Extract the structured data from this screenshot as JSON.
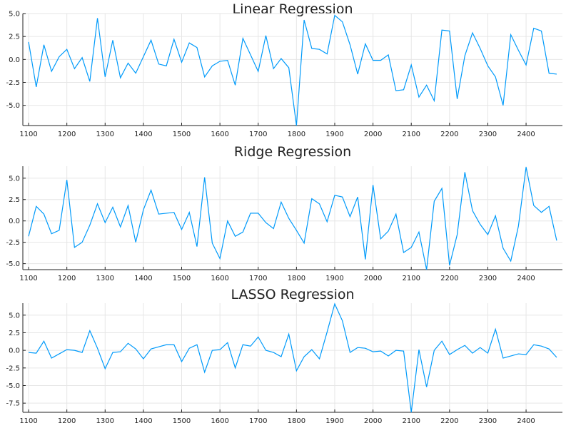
{
  "chart_data": [
    {
      "type": "line",
      "title": "Linear Regression",
      "xlim": [
        1085,
        2495
      ],
      "ylim": [
        -7.2,
        5.0
      ],
      "xticks": [
        1100,
        1200,
        1300,
        1400,
        1500,
        1600,
        1700,
        1800,
        1900,
        2000,
        2100,
        2200,
        2300,
        2400
      ],
      "yticks": [
        5.0,
        2.5,
        0.0,
        -2.5,
        -5.0
      ],
      "ytick_labels": [
        "5.0",
        "2.5",
        "0.0",
        "-2.5",
        "-5.0"
      ],
      "grid": true,
      "color": "#009AFA",
      "x": [
        1100,
        1120,
        1140,
        1160,
        1180,
        1200,
        1220,
        1240,
        1260,
        1280,
        1300,
        1320,
        1340,
        1360,
        1380,
        1400,
        1420,
        1440,
        1460,
        1480,
        1500,
        1520,
        1540,
        1560,
        1580,
        1600,
        1620,
        1640,
        1660,
        1680,
        1700,
        1720,
        1740,
        1760,
        1780,
        1800,
        1820,
        1840,
        1860,
        1880,
        1900,
        1920,
        1940,
        1960,
        1980,
        2000,
        2020,
        2040,
        2060,
        2080,
        2100,
        2120,
        2140,
        2160,
        2180,
        2200,
        2220,
        2240,
        2260,
        2280,
        2300,
        2320,
        2340,
        2360,
        2380,
        2400,
        2420,
        2440,
        2460,
        2480
      ],
      "y": [
        1.9,
        -3.0,
        1.6,
        -1.3,
        0.3,
        1.1,
        -1.0,
        0.2,
        -2.4,
        4.5,
        -1.9,
        2.1,
        -2.0,
        -0.4,
        -1.5,
        0.3,
        2.1,
        -0.5,
        -0.7,
        2.2,
        -0.3,
        1.8,
        1.3,
        -1.9,
        -0.7,
        -0.2,
        -0.1,
        -2.8,
        2.3,
        0.5,
        -1.3,
        2.6,
        -1.0,
        0.1,
        -0.9,
        -7.2,
        4.3,
        1.2,
        1.1,
        0.6,
        4.8,
        4.1,
        1.6,
        -1.6,
        1.7,
        -0.1,
        -0.1,
        0.5,
        -3.4,
        -3.3,
        -0.6,
        -4.1,
        -2.8,
        -4.5,
        3.2,
        3.1,
        -4.3,
        0.4,
        2.9,
        1.2,
        -0.7,
        -1.9,
        -5.0,
        2.7,
        1.0,
        -0.6,
        3.4,
        3.1,
        -1.5,
        -1.6
      ]
    },
    {
      "type": "line",
      "title": "Ridge Regression",
      "xlim": [
        1085,
        2495
      ],
      "ylim": [
        -5.7,
        6.4
      ],
      "xticks": [
        1100,
        1200,
        1300,
        1400,
        1500,
        1600,
        1700,
        1800,
        1900,
        2000,
        2100,
        2200,
        2300,
        2400
      ],
      "yticks": [
        5.0,
        2.5,
        0.0,
        -2.5,
        -5.0
      ],
      "ytick_labels": [
        "5.0",
        "2.5",
        "0.0",
        "-2.5",
        "-5.0"
      ],
      "grid": true,
      "color": "#009AFA",
      "x": [
        1100,
        1120,
        1140,
        1160,
        1180,
        1200,
        1220,
        1240,
        1260,
        1280,
        1300,
        1320,
        1340,
        1360,
        1380,
        1400,
        1420,
        1440,
        1460,
        1480,
        1500,
        1520,
        1540,
        1560,
        1580,
        1600,
        1620,
        1640,
        1660,
        1680,
        1700,
        1720,
        1740,
        1760,
        1780,
        1800,
        1820,
        1840,
        1860,
        1880,
        1900,
        1920,
        1940,
        1960,
        1980,
        2000,
        2020,
        2040,
        2060,
        2080,
        2100,
        2120,
        2140,
        2160,
        2180,
        2200,
        2220,
        2240,
        2260,
        2280,
        2300,
        2320,
        2340,
        2360,
        2380,
        2400,
        2420,
        2440,
        2460,
        2480
      ],
      "y": [
        -1.8,
        1.7,
        0.8,
        -1.5,
        -1.1,
        4.8,
        -3.1,
        -2.5,
        -0.5,
        2.0,
        -0.2,
        1.6,
        -0.7,
        1.8,
        -2.5,
        1.3,
        3.6,
        0.8,
        0.9,
        1.0,
        -1.0,
        1.0,
        -3.0,
        5.1,
        -2.6,
        -4.4,
        0.0,
        -1.8,
        -1.3,
        0.9,
        0.9,
        -0.2,
        -0.9,
        2.2,
        0.3,
        -1.1,
        -2.6,
        2.6,
        2.0,
        -0.1,
        3.0,
        2.8,
        0.5,
        2.8,
        -4.5,
        4.2,
        -2.1,
        -1.2,
        0.8,
        -3.7,
        -3.1,
        -1.3,
        -5.7,
        2.3,
        3.8,
        -5.2,
        -1.6,
        5.7,
        1.2,
        -0.4,
        -1.6,
        0.6,
        -3.2,
        -4.7,
        -0.6,
        6.3,
        1.8,
        1.0,
        1.7,
        -2.3
      ]
    },
    {
      "type": "line",
      "title": "LASSO Regression",
      "xlim": [
        1085,
        2495
      ],
      "ylim": [
        -8.8,
        6.7
      ],
      "xticks": [
        1100,
        1200,
        1300,
        1400,
        1500,
        1600,
        1700,
        1800,
        1900,
        2000,
        2100,
        2200,
        2300,
        2400
      ],
      "yticks": [
        5.0,
        2.5,
        0.0,
        -2.5,
        -5.0,
        -7.5
      ],
      "ytick_labels": [
        "5.0",
        "2.5",
        "0.0",
        "-2.5",
        "-5.0",
        "-7.5"
      ],
      "grid": true,
      "color": "#009AFA",
      "x": [
        1100,
        1120,
        1140,
        1160,
        1180,
        1200,
        1220,
        1240,
        1260,
        1280,
        1300,
        1320,
        1340,
        1360,
        1380,
        1400,
        1420,
        1440,
        1460,
        1480,
        1500,
        1520,
        1540,
        1560,
        1580,
        1600,
        1620,
        1640,
        1660,
        1680,
        1700,
        1720,
        1740,
        1760,
        1780,
        1800,
        1820,
        1840,
        1860,
        1880,
        1900,
        1920,
        1940,
        1960,
        1980,
        2000,
        2020,
        2040,
        2060,
        2080,
        2100,
        2120,
        2140,
        2160,
        2180,
        2200,
        2220,
        2240,
        2260,
        2280,
        2300,
        2320,
        2340,
        2360,
        2380,
        2400,
        2420,
        2440,
        2460,
        2480
      ],
      "y": [
        -0.3,
        -0.4,
        1.3,
        -1.1,
        -0.5,
        0.1,
        0.0,
        -0.3,
        2.8,
        0.3,
        -2.6,
        -0.3,
        -0.2,
        1.0,
        0.2,
        -1.2,
        0.2,
        0.5,
        0.8,
        0.8,
        -1.6,
        0.3,
        0.8,
        -3.1,
        0.0,
        0.1,
        1.1,
        -2.5,
        0.8,
        0.6,
        1.9,
        0.0,
        -0.3,
        -0.9,
        2.3,
        -2.9,
        -0.9,
        0.1,
        -1.2,
        2.6,
        6.6,
        4.2,
        -0.3,
        0.4,
        0.3,
        -0.2,
        -0.1,
        -0.8,
        0.0,
        -0.1,
        -8.8,
        0.1,
        -5.2,
        0.0,
        1.3,
        -0.6,
        0.1,
        0.7,
        -0.4,
        0.4,
        -0.4,
        3.0,
        -1.1,
        -0.8,
        -0.5,
        -0.6,
        0.8,
        0.6,
        0.2,
        -1.0
      ]
    }
  ]
}
